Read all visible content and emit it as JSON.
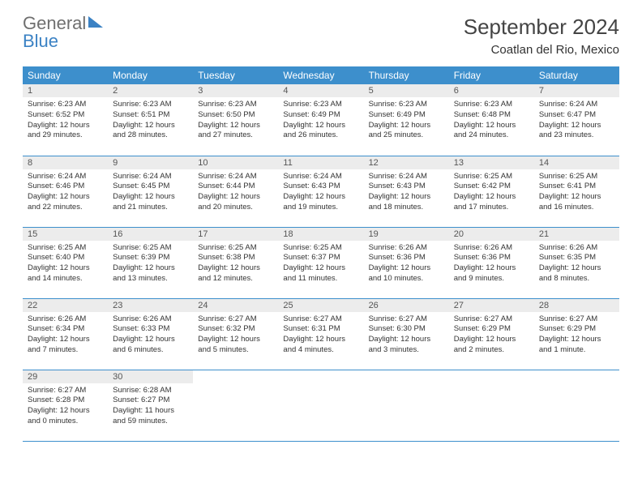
{
  "logo": {
    "word1": "General",
    "word2": "Blue"
  },
  "title": "September 2024",
  "location": "Coatlan del Rio, Mexico",
  "header_bg": "#3d8fcc",
  "daynum_bg": "#ececec",
  "border_color": "#3d8fcc",
  "weekdays": [
    "Sunday",
    "Monday",
    "Tuesday",
    "Wednesday",
    "Thursday",
    "Friday",
    "Saturday"
  ],
  "font": {
    "title_size": 26,
    "location_size": 15,
    "weekday_size": 12,
    "daynum_size": 11,
    "text_size": 9.5
  },
  "weeks": [
    [
      {
        "n": "1",
        "sr": "6:23 AM",
        "ss": "6:52 PM",
        "dl": "12 hours and 29 minutes."
      },
      {
        "n": "2",
        "sr": "6:23 AM",
        "ss": "6:51 PM",
        "dl": "12 hours and 28 minutes."
      },
      {
        "n": "3",
        "sr": "6:23 AM",
        "ss": "6:50 PM",
        "dl": "12 hours and 27 minutes."
      },
      {
        "n": "4",
        "sr": "6:23 AM",
        "ss": "6:49 PM",
        "dl": "12 hours and 26 minutes."
      },
      {
        "n": "5",
        "sr": "6:23 AM",
        "ss": "6:49 PM",
        "dl": "12 hours and 25 minutes."
      },
      {
        "n": "6",
        "sr": "6:23 AM",
        "ss": "6:48 PM",
        "dl": "12 hours and 24 minutes."
      },
      {
        "n": "7",
        "sr": "6:24 AM",
        "ss": "6:47 PM",
        "dl": "12 hours and 23 minutes."
      }
    ],
    [
      {
        "n": "8",
        "sr": "6:24 AM",
        "ss": "6:46 PM",
        "dl": "12 hours and 22 minutes."
      },
      {
        "n": "9",
        "sr": "6:24 AM",
        "ss": "6:45 PM",
        "dl": "12 hours and 21 minutes."
      },
      {
        "n": "10",
        "sr": "6:24 AM",
        "ss": "6:44 PM",
        "dl": "12 hours and 20 minutes."
      },
      {
        "n": "11",
        "sr": "6:24 AM",
        "ss": "6:43 PM",
        "dl": "12 hours and 19 minutes."
      },
      {
        "n": "12",
        "sr": "6:24 AM",
        "ss": "6:43 PM",
        "dl": "12 hours and 18 minutes."
      },
      {
        "n": "13",
        "sr": "6:25 AM",
        "ss": "6:42 PM",
        "dl": "12 hours and 17 minutes."
      },
      {
        "n": "14",
        "sr": "6:25 AM",
        "ss": "6:41 PM",
        "dl": "12 hours and 16 minutes."
      }
    ],
    [
      {
        "n": "15",
        "sr": "6:25 AM",
        "ss": "6:40 PM",
        "dl": "12 hours and 14 minutes."
      },
      {
        "n": "16",
        "sr": "6:25 AM",
        "ss": "6:39 PM",
        "dl": "12 hours and 13 minutes."
      },
      {
        "n": "17",
        "sr": "6:25 AM",
        "ss": "6:38 PM",
        "dl": "12 hours and 12 minutes."
      },
      {
        "n": "18",
        "sr": "6:25 AM",
        "ss": "6:37 PM",
        "dl": "12 hours and 11 minutes."
      },
      {
        "n": "19",
        "sr": "6:26 AM",
        "ss": "6:36 PM",
        "dl": "12 hours and 10 minutes."
      },
      {
        "n": "20",
        "sr": "6:26 AM",
        "ss": "6:36 PM",
        "dl": "12 hours and 9 minutes."
      },
      {
        "n": "21",
        "sr": "6:26 AM",
        "ss": "6:35 PM",
        "dl": "12 hours and 8 minutes."
      }
    ],
    [
      {
        "n": "22",
        "sr": "6:26 AM",
        "ss": "6:34 PM",
        "dl": "12 hours and 7 minutes."
      },
      {
        "n": "23",
        "sr": "6:26 AM",
        "ss": "6:33 PM",
        "dl": "12 hours and 6 minutes."
      },
      {
        "n": "24",
        "sr": "6:27 AM",
        "ss": "6:32 PM",
        "dl": "12 hours and 5 minutes."
      },
      {
        "n": "25",
        "sr": "6:27 AM",
        "ss": "6:31 PM",
        "dl": "12 hours and 4 minutes."
      },
      {
        "n": "26",
        "sr": "6:27 AM",
        "ss": "6:30 PM",
        "dl": "12 hours and 3 minutes."
      },
      {
        "n": "27",
        "sr": "6:27 AM",
        "ss": "6:29 PM",
        "dl": "12 hours and 2 minutes."
      },
      {
        "n": "28",
        "sr": "6:27 AM",
        "ss": "6:29 PM",
        "dl": "12 hours and 1 minute."
      }
    ],
    [
      {
        "n": "29",
        "sr": "6:27 AM",
        "ss": "6:28 PM",
        "dl": "12 hours and 0 minutes."
      },
      {
        "n": "30",
        "sr": "6:28 AM",
        "ss": "6:27 PM",
        "dl": "11 hours and 59 minutes."
      },
      null,
      null,
      null,
      null,
      null
    ]
  ],
  "labels": {
    "sunrise": "Sunrise: ",
    "sunset": "Sunset: ",
    "daylight": "Daylight: "
  }
}
